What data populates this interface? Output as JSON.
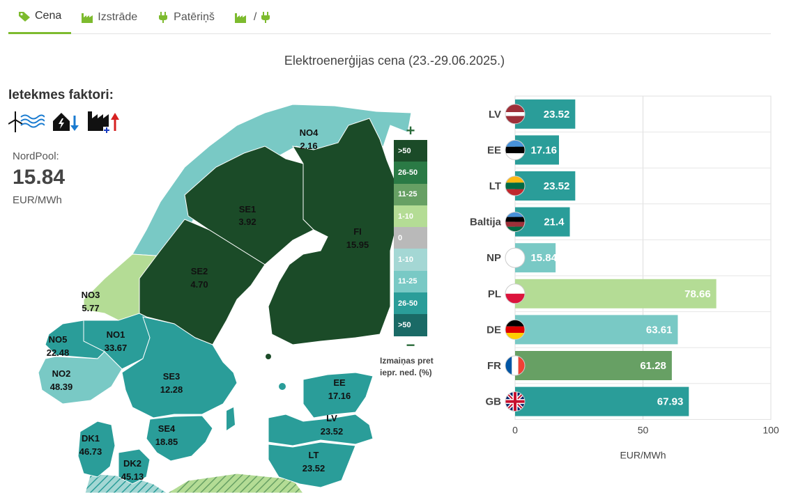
{
  "tabs": [
    {
      "label": "Cena",
      "icon": "price-tag-icon",
      "active": true
    },
    {
      "label": "Izstrāde",
      "icon": "factory-icon",
      "active": false
    },
    {
      "label": "Patēriņš",
      "icon": "plug-icon",
      "active": false
    },
    {
      "label": "/",
      "icon": "factory-plug-icon",
      "active": false
    }
  ],
  "title": "Elektroenerģijas cena (23.-29.06.2025.)",
  "factors": {
    "title": "Ietekmes faktori:",
    "icons": [
      "wind-water-icon",
      "house-down-icon",
      "factory-up-icon"
    ]
  },
  "nordpool": {
    "label": "NordPool:",
    "value": "15.84",
    "unit": "EUR/MWh"
  },
  "map": {
    "zones": [
      {
        "id": "NO4",
        "value": "2.16",
        "color": "#79c9c5"
      },
      {
        "id": "SE1",
        "value": "3.92",
        "color": "#1b4b28"
      },
      {
        "id": "FI",
        "value": "15.95",
        "color": "#1b4b28"
      },
      {
        "id": "SE2",
        "value": "4.70",
        "color": "#1b4b28"
      },
      {
        "id": "NO3",
        "value": "5.77",
        "color": "#b4dc95"
      },
      {
        "id": "NO1",
        "value": "33.67",
        "color": "#2a9d99"
      },
      {
        "id": "NO5",
        "value": "22.48",
        "color": "#2a9d99"
      },
      {
        "id": "NO2",
        "value": "48.39",
        "color": "#79c9c5"
      },
      {
        "id": "SE3",
        "value": "12.28",
        "color": "#2a9d99"
      },
      {
        "id": "SE4",
        "value": "18.85",
        "color": "#2a9d99"
      },
      {
        "id": "DK1",
        "value": "46.73",
        "color": "#2a9d99"
      },
      {
        "id": "DK2",
        "value": "45.13",
        "color": "#2a9d99"
      },
      {
        "id": "EE",
        "value": "17.16",
        "color": "#2a9d99"
      },
      {
        "id": "LV",
        "value": "23.52",
        "color": "#2a9d99"
      },
      {
        "id": "LT",
        "value": "23.52",
        "color": "#2a9d99"
      }
    ]
  },
  "legend": {
    "plus": "+",
    "minus": "−",
    "items": [
      {
        "label": ">50",
        "color": "#1b4b28"
      },
      {
        "label": "26-50",
        "color": "#2a7a45"
      },
      {
        "label": "11-25",
        "color": "#67a064"
      },
      {
        "label": "1-10",
        "color": "#b4dc95"
      },
      {
        "label": "0",
        "color": "#b9b9b9"
      },
      {
        "label": "1-10",
        "color": "#a4d7d4"
      },
      {
        "label": "11-25",
        "color": "#79c9c5"
      },
      {
        "label": "26-50",
        "color": "#2a9d99"
      },
      {
        "label": ">50",
        "color": "#1a6a66"
      }
    ],
    "caption": "Izmaiņas pret iepr. ned. (%)"
  },
  "chart_data": {
    "type": "bar",
    "orientation": "horizontal",
    "categories": [
      "LV",
      "EE",
      "LT",
      "Baltija",
      "NP",
      "PL",
      "DE",
      "FR",
      "GB"
    ],
    "values": [
      23.52,
      17.16,
      23.52,
      21.4,
      15.84,
      78.66,
      63.61,
      61.28,
      67.93
    ],
    "value_labels": [
      "23.52",
      "17.16",
      "23.52",
      "21.4",
      "15.84",
      "78.66",
      "63.61",
      "61.28",
      "67.93"
    ],
    "bar_colors": [
      "#2a9d99",
      "#2a9d99",
      "#2a9d99",
      "#2a9d99",
      "#79c9c5",
      "#b4dc95",
      "#79c9c5",
      "#67a064",
      "#2a9d99"
    ],
    "flags": [
      "latvia-flag-icon",
      "estonia-flag-icon",
      "lithuania-flag-icon",
      "baltics-flag-icon",
      "nordpool-icon",
      "poland-flag-icon",
      "germany-flag-icon",
      "france-flag-icon",
      "uk-flag-icon"
    ],
    "xlabel": "EUR/MWh",
    "xlim": [
      0,
      100
    ],
    "ticks": [
      "0",
      "50",
      "100"
    ],
    "grid": true
  }
}
